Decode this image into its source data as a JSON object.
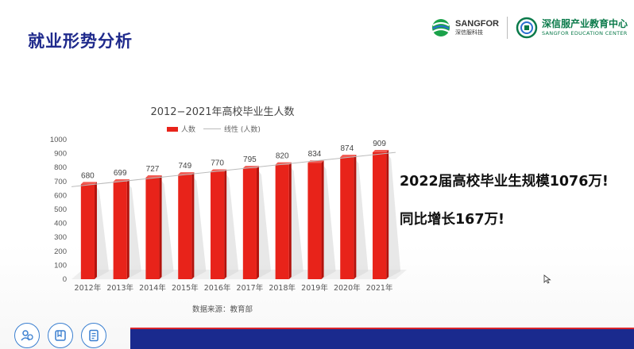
{
  "slide": {
    "title": "就业形势分析",
    "logo_primary": {
      "name": "SANGFOR",
      "sub": "深信服科技"
    },
    "logo_secondary": {
      "name": "深信服产业教育中心",
      "sub": "SANGFOR EDUCATION CENTER"
    },
    "headline": "2022届高校毕业生规模1076万!",
    "subline": "同比增长167万!",
    "source": "数据来源：教育部",
    "bottom_icons": [
      "people-icon",
      "book-icon",
      "document-icon"
    ]
  },
  "chart_data": {
    "type": "bar",
    "title": "2012−2021年高校毕业生人数",
    "legend": [
      {
        "name": "人数",
        "color": "#e8231a"
      },
      {
        "name": "线性 (人数)",
        "color": "#bbbbbb"
      }
    ],
    "legend_position": "top",
    "categories": [
      "2012年",
      "2013年",
      "2014年",
      "2015年",
      "2016年",
      "2017年",
      "2018年",
      "2019年",
      "2020年",
      "2021年"
    ],
    "series": [
      {
        "name": "人数",
        "values": [
          680,
          699,
          727,
          749,
          770,
          795,
          820,
          834,
          874,
          909
        ]
      }
    ],
    "trendline": "linear",
    "ylim": [
      0,
      1000
    ],
    "yticks": [
      0,
      100,
      200,
      300,
      400,
      500,
      600,
      700,
      800,
      900,
      1000
    ],
    "grid": false,
    "data_labels": true,
    "colors": {
      "bar": "#e8231a",
      "bar_dark": "#b3120c",
      "shadow": "#d9d9d9"
    }
  }
}
